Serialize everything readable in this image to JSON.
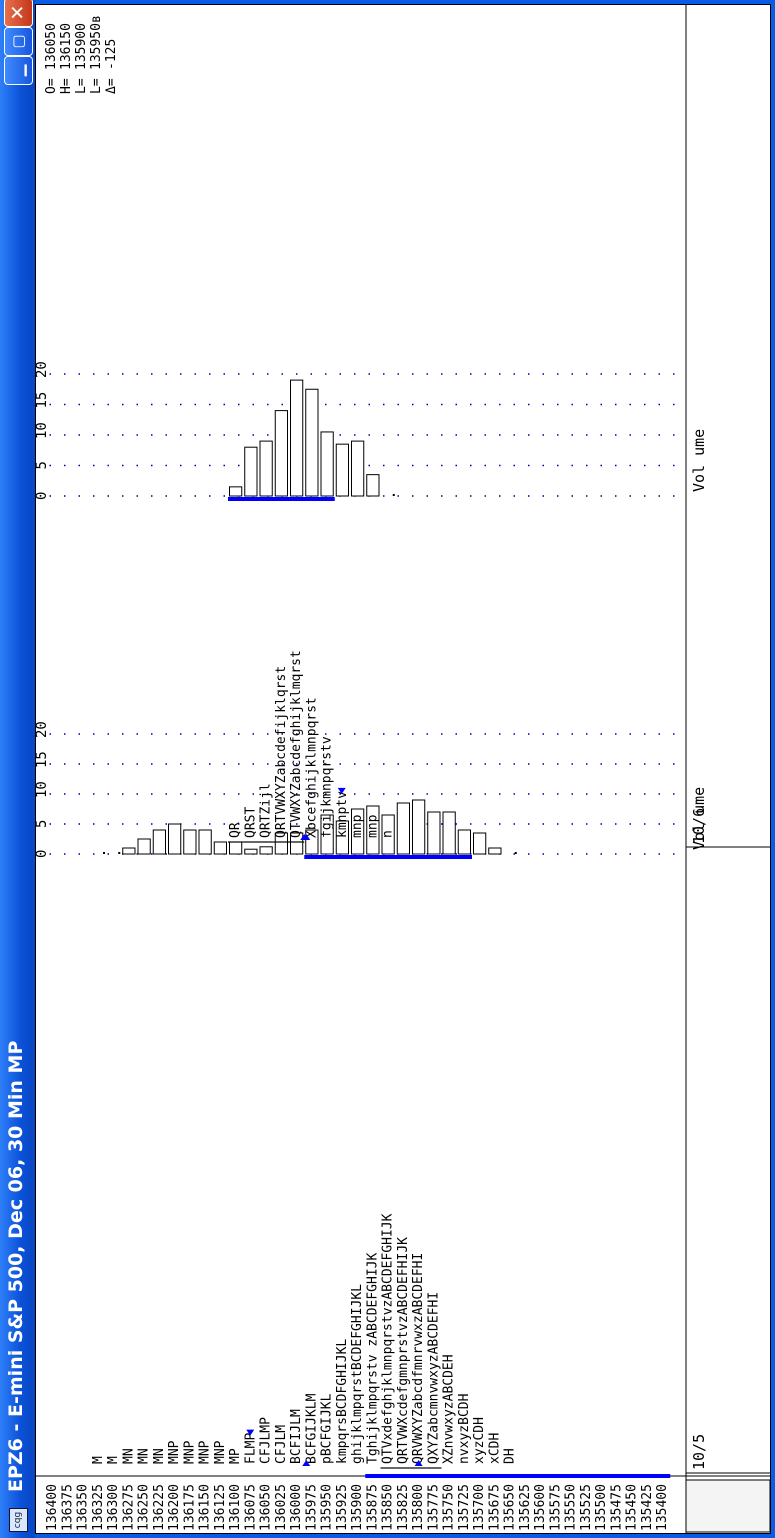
{
  "window": {
    "title": "EPZ6 - E-mini S&P 500, Dec 06, 30 Min MP",
    "app_icon": "cqg-icon",
    "buttons": [
      "minimize-icon",
      "maximize-icon",
      "close-icon"
    ],
    "close_glyph": "✕",
    "colors": {
      "titlebar": "#0a51d8",
      "value_area": "#0000ff",
      "grid_dots": "#0000aa",
      "text": "#000000",
      "background": "#ffffff"
    }
  },
  "chart_data": {
    "type": "market-profile",
    "y_axis": {
      "prices": [
        "136400",
        "136375",
        "136350",
        "136325",
        "136300",
        "136275",
        "136250",
        "136225",
        "136200",
        "136175",
        "136150",
        "136125",
        "136100",
        "136075",
        "136050",
        "136025",
        "136000",
        "135975",
        "135950",
        "135925",
        "135900",
        "135875",
        "135850",
        "135825",
        "135800",
        "135775",
        "135750",
        "135725",
        "135700",
        "135675",
        "135650",
        "135625",
        "135600",
        "135575",
        "135550",
        "135525",
        "135500",
        "135475",
        "135450",
        "135425",
        "135400"
      ]
    },
    "profiles": [
      {
        "date": "10/5",
        "volume_label": "Vol ume",
        "volume_ticks": [
          "0",
          "5",
          "10",
          "15",
          "20"
        ],
        "tpo_rows": [
          {
            "price": "136325",
            "letters": "M"
          },
          {
            "price": "136300",
            "letters": "M"
          },
          {
            "price": "136275",
            "letters": "MN"
          },
          {
            "price": "136250",
            "letters": "MN"
          },
          {
            "price": "136225",
            "letters": "MN"
          },
          {
            "price": "136200",
            "letters": "MNP"
          },
          {
            "price": "136175",
            "letters": "MNP"
          },
          {
            "price": "136150",
            "letters": "MNP"
          },
          {
            "price": "136125",
            "letters": "MNP"
          },
          {
            "price": "136100",
            "letters": "MP"
          },
          {
            "price": "136075",
            "letters": "FLMP",
            "marker": "after"
          },
          {
            "price": "136050",
            "letters": "CFJLMP"
          },
          {
            "price": "136025",
            "letters": "CFJLM"
          },
          {
            "price": "136000",
            "letters": "BCFIJLM"
          },
          {
            "price": "135975",
            "letters": "BCFGIJKLM",
            "marker": "before"
          },
          {
            "price": "135950",
            "letters": "pBCFGIJKL"
          },
          {
            "price": "135925",
            "letters": "kmpqrsBCDFGHIJKL"
          },
          {
            "price": "135900",
            "letters": "ghijklmpqrstBCDEFGHIJKL"
          },
          {
            "price": "135875",
            "letters": "Tghijklmpqrstv zABCDEFGHIJK"
          },
          {
            "price": "135850",
            "letters": "QTVxdefghjklmnpqrstvzABCDEFGHIJK",
            "bar": true
          },
          {
            "price": "135825",
            "letters": "QRTVWXcdefgmnprstvzABCDEFHIJK",
            "bar": true
          },
          {
            "price": "135800",
            "letters": "QRVWXYZabcdfmnrvwxzABCDEFHI",
            "bar": true,
            "marker": "before-mid"
          },
          {
            "price": "135775",
            "letters": "QXYZabcmnvwxyzABCDEFHI",
            "bar": true
          },
          {
            "price": "135750",
            "letters": "XZnvwxyzABCDEH"
          },
          {
            "price": "135725",
            "letters": "nvxyzBCDH"
          },
          {
            "price": "135700",
            "letters": "xyzCDH"
          },
          {
            "price": "135675",
            "letters": "xCDH"
          },
          {
            "price": "135650",
            "letters": "DH"
          }
        ],
        "volume_bars": [
          {
            "price": "136325",
            "volume": 0
          },
          {
            "price": "136300",
            "volume": 0
          },
          {
            "price": "136275",
            "volume": 1
          },
          {
            "price": "136250",
            "volume": 2.5
          },
          {
            "price": "136225",
            "volume": 4
          },
          {
            "price": "136200",
            "volume": 5
          },
          {
            "price": "136175",
            "volume": 4
          },
          {
            "price": "136150",
            "volume": 4
          },
          {
            "price": "136125",
            "volume": 2
          },
          {
            "price": "136100",
            "volume": 2
          },
          {
            "price": "136075",
            "volume": 0.8
          },
          {
            "price": "136050",
            "volume": 1.2
          },
          {
            "price": "136025",
            "volume": 3.5
          },
          {
            "price": "136000",
            "volume": 3.5
          },
          {
            "price": "135975",
            "volume": 4
          },
          {
            "price": "135950",
            "volume": 6.5
          },
          {
            "price": "135925",
            "volume": 5.5
          },
          {
            "price": "135900",
            "volume": 7.5
          },
          {
            "price": "135875",
            "volume": 8
          },
          {
            "price": "135850",
            "volume": 6.5
          },
          {
            "price": "135825",
            "volume": 8.5
          },
          {
            "price": "135800",
            "volume": 9
          },
          {
            "price": "135775",
            "volume": 7
          },
          {
            "price": "135750",
            "volume": 7
          },
          {
            "price": "135725",
            "volume": 4
          },
          {
            "price": "135700",
            "volume": 3.5
          },
          {
            "price": "135675",
            "volume": 1
          },
          {
            "price": "135650",
            "volume": 0.3
          }
        ],
        "value_area": {
          "high": "135975",
          "low": "135725"
        }
      },
      {
        "date": "10/6",
        "volume_label": "Vol ume",
        "volume_ticks": [
          "0",
          "5",
          "10",
          "15",
          "20"
        ],
        "tpo_rows": [
          {
            "price": "136100",
            "letters": "QR",
            "bar": true
          },
          {
            "price": "136075",
            "letters": "QRST",
            "bar": true
          },
          {
            "price": "136050",
            "letters": "QRTZijl",
            "bar": true
          },
          {
            "price": "136025",
            "letters": "QRTVWXYZabcdefijklqrst",
            "bar": true
          },
          {
            "price": "136000",
            "letters": "QTVWXYZabcdefghijklmqrst",
            "bar": true,
            "marker": "before-end"
          },
          {
            "price": "135975",
            "letters": "Xbcefghijklmnpqrst",
            "marker": "before"
          },
          {
            "price": "135950",
            "letters": "fgijkmnpqrstv"
          },
          {
            "price": "135925",
            "letters": "kmnptv",
            "marker": "after"
          },
          {
            "price": "135900",
            "letters": "mnp"
          },
          {
            "price": "135875",
            "letters": "mnp"
          },
          {
            "price": "135850",
            "letters": "n"
          }
        ],
        "volume_bars": [
          {
            "price": "136100",
            "volume": 1.5
          },
          {
            "price": "136075",
            "volume": 8
          },
          {
            "price": "136050",
            "volume": 9
          },
          {
            "price": "136025",
            "volume": 14
          },
          {
            "price": "136000",
            "volume": 19
          },
          {
            "price": "135975",
            "volume": 17.5
          },
          {
            "price": "135950",
            "volume": 10.5
          },
          {
            "price": "135925",
            "volume": 8.5
          },
          {
            "price": "135900",
            "volume": 9
          },
          {
            "price": "135875",
            "volume": 3.5
          },
          {
            "price": "135850",
            "volume": 0.3
          }
        ],
        "value_area": {
          "high": "136100",
          "low": "135950"
        }
      }
    ],
    "summary": [
      {
        "label": "O=",
        "value": "136050"
      },
      {
        "label": "H=",
        "value": "136150"
      },
      {
        "label": "L=",
        "value": "135900"
      },
      {
        "label": "L=",
        "value": "135950в"
      },
      {
        "label": "Δ=",
        "value": "-125"
      }
    ]
  }
}
